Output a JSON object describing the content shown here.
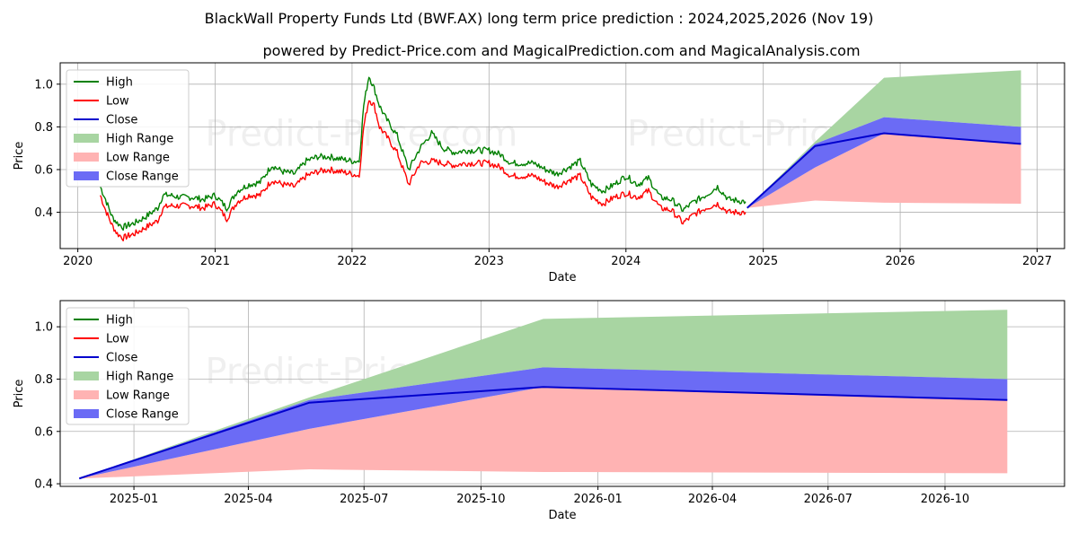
{
  "title": "BlackWall Property Funds Ltd (BWF.AX) long term price prediction : 2024,2025,2026 (Nov 19)",
  "subtitle": "powered by Predict-Price.com and MagicalPrediction.com and MagicalAnalysis.com",
  "watermark": "Predict-Price.com",
  "colors": {
    "high": "#008000",
    "low": "#ff0000",
    "close": "#0000cd",
    "high_range": "#a8d5a2",
    "low_range": "#ffb3b3",
    "close_range": "#6b6bf5"
  },
  "legend": [
    "High",
    "Low",
    "Close",
    "High Range",
    "Low Range",
    "Close Range"
  ],
  "chart_data": [
    {
      "type": "line",
      "xlabel": "Date",
      "ylabel": "Price",
      "xlim": [
        "2019-11-15",
        "2027-03-15"
      ],
      "ylim": [
        0.23,
        1.1
      ],
      "x_ticks": [
        "2020",
        "2021",
        "2022",
        "2023",
        "2024",
        "2025",
        "2026",
        "2027"
      ],
      "y_ticks": [
        "0.4",
        "0.6",
        "0.8",
        "1.0"
      ],
      "grid": true,
      "legend_position": "top-left",
      "history": {
        "dates": [
          "2020-03-01",
          "2020-03-15",
          "2020-04-01",
          "2020-04-15",
          "2020-05-01",
          "2020-05-15",
          "2020-06-01",
          "2020-07-01",
          "2020-08-01",
          "2020-08-15",
          "2020-09-01",
          "2020-10-01",
          "2020-11-01",
          "2020-12-01",
          "2021-01-01",
          "2021-02-01",
          "2021-03-01",
          "2021-04-01",
          "2021-05-01",
          "2021-06-01",
          "2021-07-01",
          "2021-08-01",
          "2021-09-01",
          "2021-10-01",
          "2021-11-01",
          "2021-12-01",
          "2022-01-01",
          "2022-01-20",
          "2022-02-01",
          "2022-02-15",
          "2022-03-01",
          "2022-03-15",
          "2022-04-01",
          "2022-05-01",
          "2022-06-01",
          "2022-07-01",
          "2022-08-01",
          "2022-09-01",
          "2022-10-01",
          "2022-11-01",
          "2022-12-01",
          "2023-01-01",
          "2023-02-01",
          "2023-03-01",
          "2023-04-01",
          "2023-05-01",
          "2023-06-01",
          "2023-07-01",
          "2023-08-01",
          "2023-09-01",
          "2023-10-01",
          "2023-11-01",
          "2023-12-01",
          "2024-01-01",
          "2024-02-01",
          "2024-03-01",
          "2024-04-01",
          "2024-05-01",
          "2024-06-01",
          "2024-07-01",
          "2024-08-01",
          "2024-09-01",
          "2024-10-01",
          "2024-11-15"
        ],
        "close": [
          0.5,
          0.43,
          0.36,
          0.33,
          0.3,
          0.31,
          0.32,
          0.35,
          0.38,
          0.44,
          0.46,
          0.45,
          0.45,
          0.44,
          0.46,
          0.4,
          0.47,
          0.5,
          0.5,
          0.58,
          0.56,
          0.55,
          0.6,
          0.62,
          0.63,
          0.62,
          0.61,
          0.6,
          0.85,
          0.98,
          0.95,
          0.85,
          0.8,
          0.72,
          0.56,
          0.66,
          0.68,
          0.66,
          0.65,
          0.66,
          0.66,
          0.66,
          0.64,
          0.6,
          0.6,
          0.6,
          0.57,
          0.55,
          0.58,
          0.6,
          0.5,
          0.47,
          0.5,
          0.52,
          0.5,
          0.53,
          0.44,
          0.44,
          0.38,
          0.42,
          0.45,
          0.47,
          0.43,
          0.42
        ],
        "high": [
          0.52,
          0.46,
          0.38,
          0.35,
          0.33,
          0.34,
          0.35,
          0.38,
          0.42,
          0.48,
          0.48,
          0.47,
          0.47,
          0.46,
          0.48,
          0.42,
          0.5,
          0.53,
          0.54,
          0.62,
          0.59,
          0.58,
          0.64,
          0.66,
          0.66,
          0.65,
          0.64,
          0.64,
          0.9,
          1.04,
          0.98,
          0.9,
          0.84,
          0.76,
          0.6,
          0.7,
          0.77,
          0.7,
          0.68,
          0.69,
          0.69,
          0.69,
          0.67,
          0.63,
          0.63,
          0.63,
          0.6,
          0.58,
          0.61,
          0.64,
          0.53,
          0.5,
          0.53,
          0.57,
          0.53,
          0.56,
          0.47,
          0.46,
          0.41,
          0.45,
          0.48,
          0.52,
          0.46,
          0.45
        ],
        "low": [
          0.48,
          0.41,
          0.34,
          0.3,
          0.28,
          0.29,
          0.3,
          0.33,
          0.36,
          0.42,
          0.43,
          0.43,
          0.43,
          0.42,
          0.44,
          0.37,
          0.45,
          0.48,
          0.48,
          0.55,
          0.53,
          0.52,
          0.57,
          0.59,
          0.6,
          0.59,
          0.58,
          0.57,
          0.8,
          0.93,
          0.9,
          0.8,
          0.76,
          0.68,
          0.53,
          0.63,
          0.64,
          0.63,
          0.62,
          0.63,
          0.63,
          0.63,
          0.61,
          0.57,
          0.57,
          0.57,
          0.54,
          0.52,
          0.55,
          0.57,
          0.47,
          0.44,
          0.47,
          0.49,
          0.47,
          0.5,
          0.42,
          0.41,
          0.35,
          0.39,
          0.42,
          0.44,
          0.4,
          0.4
        ]
      },
      "forecast": {
        "dates": [
          "2024-11-19",
          "2025-05-19",
          "2025-11-19",
          "2026-11-19"
        ],
        "close": [
          0.42,
          0.71,
          0.77,
          0.72
        ],
        "high_range_upper": [
          0.42,
          0.73,
          1.03,
          1.065
        ],
        "close_range_upper": [
          0.42,
          0.72,
          0.845,
          0.8
        ],
        "close_range_lower": [
          0.42,
          0.61,
          0.77,
          0.72
        ],
        "low_range_upper": [
          0.42,
          0.61,
          0.77,
          0.72
        ],
        "low_range_lower": [
          0.42,
          0.455,
          0.445,
          0.44
        ]
      }
    },
    {
      "type": "line",
      "xlabel": "Date",
      "ylabel": "Price",
      "xlim": [
        "2024-11-04",
        "2027-01-03"
      ],
      "ylim": [
        0.39,
        1.1
      ],
      "x_ticks": [
        "2025-01",
        "2025-04",
        "2025-07",
        "2025-10",
        "2026-01",
        "2026-04",
        "2026-07",
        "2026-10"
      ],
      "y_ticks": [
        "0.4",
        "0.6",
        "0.8",
        "1.0"
      ],
      "grid": true,
      "legend_position": "top-left",
      "forecast": {
        "dates": [
          "2024-11-19",
          "2025-05-19",
          "2025-11-19",
          "2026-11-19"
        ],
        "close": [
          0.42,
          0.71,
          0.77,
          0.72
        ],
        "high_range_upper": [
          0.42,
          0.73,
          1.03,
          1.065
        ],
        "close_range_upper": [
          0.42,
          0.72,
          0.845,
          0.8
        ],
        "close_range_lower": [
          0.42,
          0.61,
          0.77,
          0.72
        ],
        "low_range_upper": [
          0.42,
          0.61,
          0.77,
          0.72
        ],
        "low_range_lower": [
          0.42,
          0.455,
          0.445,
          0.44
        ]
      }
    }
  ]
}
